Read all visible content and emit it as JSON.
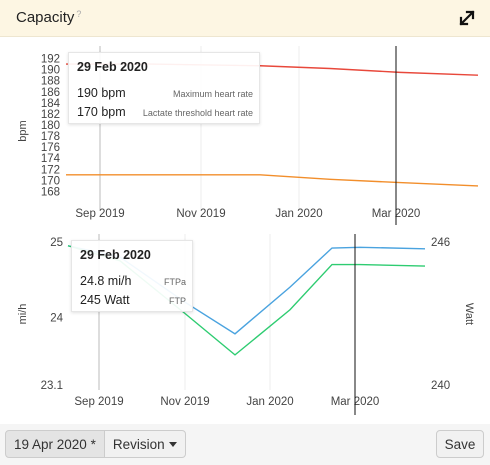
{
  "header": {
    "title": "Capacity",
    "help": "?"
  },
  "chart_data": [
    {
      "type": "line",
      "ylabel": "bpm",
      "x_ticks": [
        "Sep 2019",
        "Nov 2019",
        "Jan 2020",
        "Mar 2020"
      ],
      "y_ticks": [
        168,
        170,
        172,
        174,
        176,
        178,
        180,
        182,
        184,
        186,
        188,
        190,
        192
      ],
      "ylim": [
        167,
        193
      ],
      "grid": true,
      "series": [
        {
          "name": "Maximum heart rate",
          "color": "#e8483b",
          "points": [
            [
              0,
              191
            ],
            [
              1,
              191
            ],
            [
              2,
              190.7
            ],
            [
              3,
              190.2
            ],
            [
              4,
              189.5
            ],
            [
              5,
              189
            ]
          ]
        },
        {
          "name": "Lactate threshold heart rate",
          "color": "#f28e2b",
          "points": [
            [
              0,
              171
            ],
            [
              1,
              171
            ],
            [
              2,
              171
            ],
            [
              3,
              170.2
            ],
            [
              4,
              169.6
            ],
            [
              5,
              169
            ]
          ]
        }
      ],
      "tooltip": {
        "date": "29 Feb 2020",
        "rows": [
          {
            "value": "190 bpm",
            "label": "Maximum heart rate"
          },
          {
            "value": "170 bpm",
            "label": "Lactate threshold heart rate"
          }
        ]
      }
    },
    {
      "type": "line",
      "ylabel_left": "mi/h",
      "ylabel_right": "Watt",
      "x_ticks": [
        "Sep 2019",
        "Nov 2019",
        "Jan 2020",
        "Mar 2020"
      ],
      "y_ticks_left": [
        23.1,
        24,
        25
      ],
      "y_ticks_right": [
        240,
        246
      ],
      "ylim_left": [
        23.1,
        25
      ],
      "grid": true,
      "series": [
        {
          "name": "FTPa",
          "color": "#4aa3df",
          "points": [
            [
              0,
              24.95
            ],
            [
              1,
              24.8
            ],
            [
              2,
              24.2
            ],
            [
              3,
              23.78
            ],
            [
              4,
              24.4
            ],
            [
              5,
              24.92
            ],
            [
              6,
              24.93
            ],
            [
              7,
              24.91
            ]
          ]
        },
        {
          "name": "FTP",
          "color": "#2ecc71",
          "points": [
            [
              0,
              24.95
            ],
            [
              1,
              24.75
            ],
            [
              2,
              24.05
            ],
            [
              3,
              23.5
            ],
            [
              4,
              24.1
            ],
            [
              5,
              24.7
            ],
            [
              6,
              24.7
            ],
            [
              7,
              24.68
            ]
          ]
        }
      ],
      "tooltip": {
        "date": "29 Feb 2020",
        "rows": [
          {
            "value": "24.8 mi/h",
            "label": "FTPa"
          },
          {
            "value": "245 Watt",
            "label": "FTP"
          }
        ]
      }
    }
  ],
  "footer": {
    "date_button": "19 Apr 2020 *",
    "revision_button": "Revision",
    "save_button": "Save"
  }
}
